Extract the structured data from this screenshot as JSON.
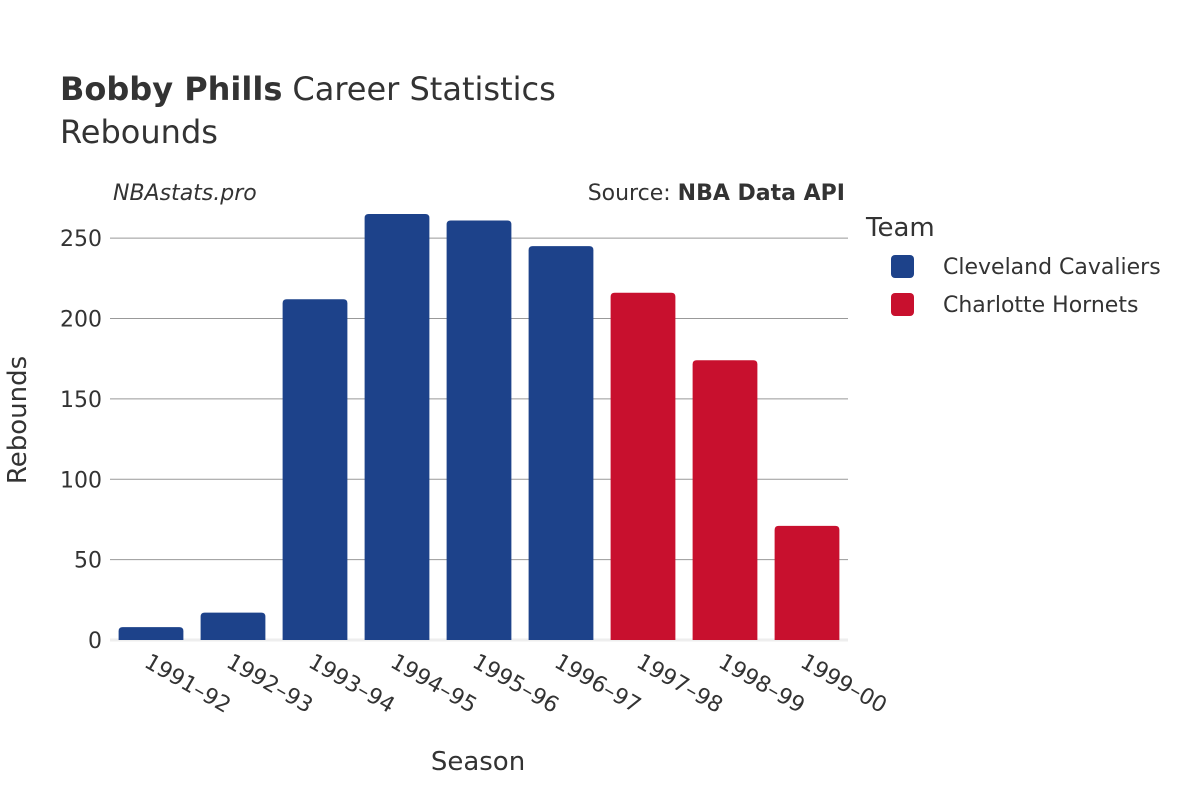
{
  "chart_data": {
    "type": "bar",
    "title_bold": "Bobby Phills",
    "title_rest": "Career Statistics",
    "subtitle": "Rebounds",
    "watermark": "NBAstats.pro",
    "source_prefix": "Source: ",
    "source_name": "NBA Data API",
    "xlabel": "Season",
    "ylabel": "Rebounds",
    "ylim": [
      0,
      270
    ],
    "yticks": [
      0,
      50,
      100,
      150,
      200,
      250
    ],
    "grid": true,
    "legend_title": "Team",
    "legend_position": "top-right",
    "categories": [
      "1991–92",
      "1992–93",
      "1993–94",
      "1994–95",
      "1995–96",
      "1996–97",
      "1997–98",
      "1998–99",
      "1999–00"
    ],
    "series": [
      {
        "name": "Cleveland Cavaliers",
        "color": "#1d428a",
        "values": [
          8,
          17,
          212,
          265,
          261,
          245,
          null,
          null,
          null
        ]
      },
      {
        "name": "Charlotte Hornets",
        "color": "#c8102e",
        "values": [
          null,
          null,
          null,
          null,
          null,
          null,
          216,
          174,
          71
        ]
      }
    ]
  }
}
